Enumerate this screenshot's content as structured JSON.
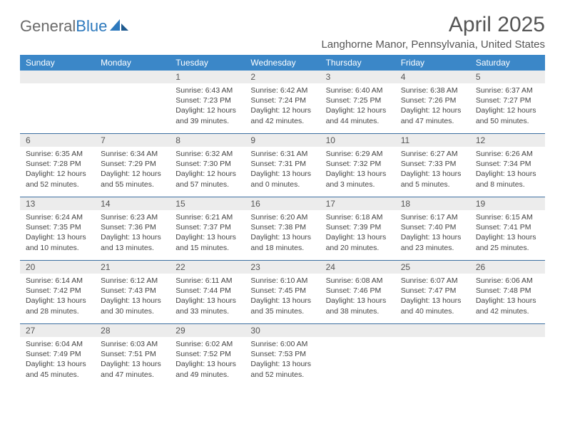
{
  "brand": {
    "name_part1": "General",
    "name_part2": "Blue"
  },
  "title": "April 2025",
  "location": "Langhorne Manor, Pennsylvania, United States",
  "header_color": "#3b87c8",
  "rule_color": "#3b6ea0",
  "daybar_color": "#ececec",
  "weekdays": [
    "Sunday",
    "Monday",
    "Tuesday",
    "Wednesday",
    "Thursday",
    "Friday",
    "Saturday"
  ],
  "weeks": [
    [
      {
        "n": "",
        "lines": []
      },
      {
        "n": "",
        "lines": []
      },
      {
        "n": "1",
        "lines": [
          "Sunrise: 6:43 AM",
          "Sunset: 7:23 PM",
          "Daylight: 12 hours and 39 minutes."
        ]
      },
      {
        "n": "2",
        "lines": [
          "Sunrise: 6:42 AM",
          "Sunset: 7:24 PM",
          "Daylight: 12 hours and 42 minutes."
        ]
      },
      {
        "n": "3",
        "lines": [
          "Sunrise: 6:40 AM",
          "Sunset: 7:25 PM",
          "Daylight: 12 hours and 44 minutes."
        ]
      },
      {
        "n": "4",
        "lines": [
          "Sunrise: 6:38 AM",
          "Sunset: 7:26 PM",
          "Daylight: 12 hours and 47 minutes."
        ]
      },
      {
        "n": "5",
        "lines": [
          "Sunrise: 6:37 AM",
          "Sunset: 7:27 PM",
          "Daylight: 12 hours and 50 minutes."
        ]
      }
    ],
    [
      {
        "n": "6",
        "lines": [
          "Sunrise: 6:35 AM",
          "Sunset: 7:28 PM",
          "Daylight: 12 hours and 52 minutes."
        ]
      },
      {
        "n": "7",
        "lines": [
          "Sunrise: 6:34 AM",
          "Sunset: 7:29 PM",
          "Daylight: 12 hours and 55 minutes."
        ]
      },
      {
        "n": "8",
        "lines": [
          "Sunrise: 6:32 AM",
          "Sunset: 7:30 PM",
          "Daylight: 12 hours and 57 minutes."
        ]
      },
      {
        "n": "9",
        "lines": [
          "Sunrise: 6:31 AM",
          "Sunset: 7:31 PM",
          "Daylight: 13 hours and 0 minutes."
        ]
      },
      {
        "n": "10",
        "lines": [
          "Sunrise: 6:29 AM",
          "Sunset: 7:32 PM",
          "Daylight: 13 hours and 3 minutes."
        ]
      },
      {
        "n": "11",
        "lines": [
          "Sunrise: 6:27 AM",
          "Sunset: 7:33 PM",
          "Daylight: 13 hours and 5 minutes."
        ]
      },
      {
        "n": "12",
        "lines": [
          "Sunrise: 6:26 AM",
          "Sunset: 7:34 PM",
          "Daylight: 13 hours and 8 minutes."
        ]
      }
    ],
    [
      {
        "n": "13",
        "lines": [
          "Sunrise: 6:24 AM",
          "Sunset: 7:35 PM",
          "Daylight: 13 hours and 10 minutes."
        ]
      },
      {
        "n": "14",
        "lines": [
          "Sunrise: 6:23 AM",
          "Sunset: 7:36 PM",
          "Daylight: 13 hours and 13 minutes."
        ]
      },
      {
        "n": "15",
        "lines": [
          "Sunrise: 6:21 AM",
          "Sunset: 7:37 PM",
          "Daylight: 13 hours and 15 minutes."
        ]
      },
      {
        "n": "16",
        "lines": [
          "Sunrise: 6:20 AM",
          "Sunset: 7:38 PM",
          "Daylight: 13 hours and 18 minutes."
        ]
      },
      {
        "n": "17",
        "lines": [
          "Sunrise: 6:18 AM",
          "Sunset: 7:39 PM",
          "Daylight: 13 hours and 20 minutes."
        ]
      },
      {
        "n": "18",
        "lines": [
          "Sunrise: 6:17 AM",
          "Sunset: 7:40 PM",
          "Daylight: 13 hours and 23 minutes."
        ]
      },
      {
        "n": "19",
        "lines": [
          "Sunrise: 6:15 AM",
          "Sunset: 7:41 PM",
          "Daylight: 13 hours and 25 minutes."
        ]
      }
    ],
    [
      {
        "n": "20",
        "lines": [
          "Sunrise: 6:14 AM",
          "Sunset: 7:42 PM",
          "Daylight: 13 hours and 28 minutes."
        ]
      },
      {
        "n": "21",
        "lines": [
          "Sunrise: 6:12 AM",
          "Sunset: 7:43 PM",
          "Daylight: 13 hours and 30 minutes."
        ]
      },
      {
        "n": "22",
        "lines": [
          "Sunrise: 6:11 AM",
          "Sunset: 7:44 PM",
          "Daylight: 13 hours and 33 minutes."
        ]
      },
      {
        "n": "23",
        "lines": [
          "Sunrise: 6:10 AM",
          "Sunset: 7:45 PM",
          "Daylight: 13 hours and 35 minutes."
        ]
      },
      {
        "n": "24",
        "lines": [
          "Sunrise: 6:08 AM",
          "Sunset: 7:46 PM",
          "Daylight: 13 hours and 38 minutes."
        ]
      },
      {
        "n": "25",
        "lines": [
          "Sunrise: 6:07 AM",
          "Sunset: 7:47 PM",
          "Daylight: 13 hours and 40 minutes."
        ]
      },
      {
        "n": "26",
        "lines": [
          "Sunrise: 6:06 AM",
          "Sunset: 7:48 PM",
          "Daylight: 13 hours and 42 minutes."
        ]
      }
    ],
    [
      {
        "n": "27",
        "lines": [
          "Sunrise: 6:04 AM",
          "Sunset: 7:49 PM",
          "Daylight: 13 hours and 45 minutes."
        ]
      },
      {
        "n": "28",
        "lines": [
          "Sunrise: 6:03 AM",
          "Sunset: 7:51 PM",
          "Daylight: 13 hours and 47 minutes."
        ]
      },
      {
        "n": "29",
        "lines": [
          "Sunrise: 6:02 AM",
          "Sunset: 7:52 PM",
          "Daylight: 13 hours and 49 minutes."
        ]
      },
      {
        "n": "30",
        "lines": [
          "Sunrise: 6:00 AM",
          "Sunset: 7:53 PM",
          "Daylight: 13 hours and 52 minutes."
        ]
      },
      {
        "n": "",
        "lines": []
      },
      {
        "n": "",
        "lines": []
      },
      {
        "n": "",
        "lines": []
      }
    ]
  ]
}
